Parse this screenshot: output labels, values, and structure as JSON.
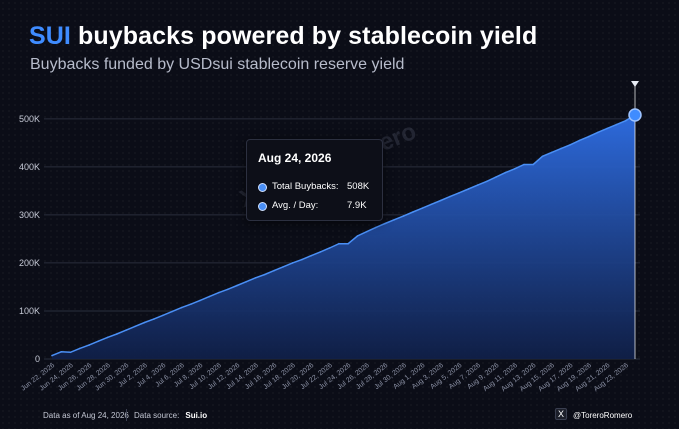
{
  "header": {
    "title_accent": "SUI",
    "title_rest": "buybacks powered by stablecoin yield",
    "subtitle": "Buybacks funded by USDsui stablecoin reserve yield"
  },
  "tooltip": {
    "date": "Aug 24, 2026",
    "rows": [
      {
        "label": "Total Buybacks:",
        "value": "508K"
      },
      {
        "label": "Avg. / Day:",
        "value": "7.9K"
      }
    ]
  },
  "watermark": "X ToreroRomero",
  "footer": {
    "as_of": "Data as of Aug 24, 2026",
    "source_label": "Data source:",
    "source_value": "Sui.io",
    "handle": "@ToreroRomero",
    "x_icon": "X"
  },
  "colors": {
    "accent": "#3f8cff",
    "area_top": "#2f6fe6",
    "area_bottom": "#10204a",
    "line": "#4a8ff5"
  },
  "chart_data": {
    "type": "area",
    "y_ticks": [
      "0",
      "100K",
      "200K",
      "300K",
      "400K",
      "500K"
    ],
    "ylim": [
      0,
      560000
    ],
    "x_ticks": [
      "Jun 22, 2026",
      "Jun 24, 2026",
      "Jun 26, 2026",
      "Jun 28, 2026",
      "Jun 30, 2026",
      "Jul 2, 2026",
      "Jul 4, 2026",
      "Jul 6, 2026",
      "Jul 8, 2026",
      "Jul 10, 2026",
      "Jul 12, 2026",
      "Jul 14, 2026",
      "Jul 16, 2026",
      "Jul 18, 2026",
      "Jul 20, 2026",
      "Jul 22, 2026",
      "Jul 24, 2026",
      "Jul 26, 2026",
      "Jul 28, 2026",
      "Jul 30, 2026",
      "Aug 1, 2026",
      "Aug 3, 2026",
      "Aug 5, 2026",
      "Aug 7, 2026",
      "Aug 9, 2026",
      "Aug 11, 2026",
      "Aug 13, 2026",
      "Aug 15, 2026",
      "Aug 17, 2026",
      "Aug 19, 2026",
      "Aug 21, 2026",
      "Aug 23, 2026"
    ],
    "x": [
      "Jun 22, 2026",
      "Jun 23, 2026",
      "Jun 24, 2026",
      "Jun 25, 2026",
      "Jun 26, 2026",
      "Jun 27, 2026",
      "Jun 28, 2026",
      "Jun 29, 2026",
      "Jun 30, 2026",
      "Jul 1, 2026",
      "Jul 2, 2026",
      "Jul 3, 2026",
      "Jul 4, 2026",
      "Jul 5, 2026",
      "Jul 6, 2026",
      "Jul 7, 2026",
      "Jul 8, 2026",
      "Jul 9, 2026",
      "Jul 10, 2026",
      "Jul 11, 2026",
      "Jul 12, 2026",
      "Jul 13, 2026",
      "Jul 14, 2026",
      "Jul 15, 2026",
      "Jul 16, 2026",
      "Jul 17, 2026",
      "Jul 18, 2026",
      "Jul 19, 2026",
      "Jul 20, 2026",
      "Jul 21, 2026",
      "Jul 22, 2026",
      "Jul 23, 2026",
      "Jul 24, 2026",
      "Jul 25, 2026",
      "Jul 26, 2026",
      "Jul 27, 2026",
      "Jul 28, 2026",
      "Jul 29, 2026",
      "Jul 30, 2026",
      "Jul 31, 2026",
      "Aug 1, 2026",
      "Aug 2, 2026",
      "Aug 3, 2026",
      "Aug 4, 2026",
      "Aug 5, 2026",
      "Aug 6, 2026",
      "Aug 7, 2026",
      "Aug 8, 2026",
      "Aug 9, 2026",
      "Aug 10, 2026",
      "Aug 11, 2026",
      "Aug 12, 2026",
      "Aug 13, 2026",
      "Aug 14, 2026",
      "Aug 15, 2026",
      "Aug 16, 2026",
      "Aug 17, 2026",
      "Aug 18, 2026",
      "Aug 19, 2026",
      "Aug 20, 2026",
      "Aug 21, 2026",
      "Aug 22, 2026",
      "Aug 23, 2026",
      "Aug 24, 2026"
    ],
    "series": [
      {
        "values": [
          7000,
          15000,
          14000,
          22000,
          29000,
          37000,
          45000,
          52000,
          60000,
          68000,
          76000,
          83000,
          91000,
          99000,
          107000,
          114000,
          122000,
          130000,
          138000,
          145000,
          153000,
          161000,
          169000,
          176000,
          184000,
          192000,
          200000,
          207000,
          215000,
          223000,
          231000,
          240000,
          240000,
          256000,
          265000,
          274000,
          282000,
          290000,
          298000,
          306000,
          314000,
          322000,
          330000,
          338000,
          346000,
          354000,
          362000,
          370000,
          379000,
          388000,
          396000,
          405000,
          405000,
          422000,
          430000,
          438000,
          446000,
          455000,
          463000,
          472000,
          480000,
          488000,
          496000,
          508000
        ]
      }
    ],
    "highlight": {
      "x": "Aug 24, 2026",
      "y": 508000
    },
    "grid": true,
    "legend": "none"
  }
}
